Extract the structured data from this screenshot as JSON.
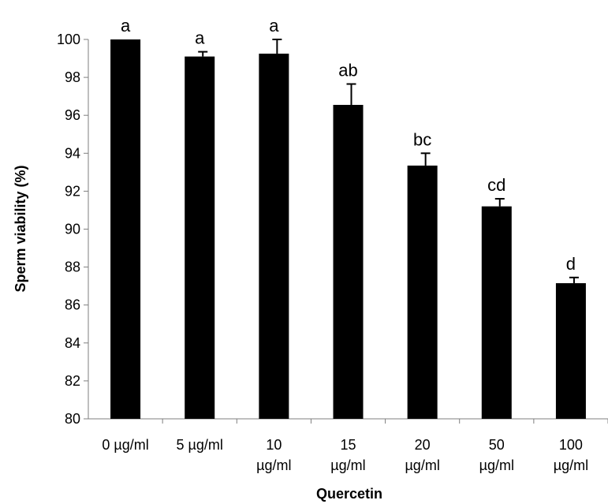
{
  "chart_data": {
    "type": "bar",
    "title": "",
    "xlabel": "Quercetin",
    "ylabel": "Sperm viability (%)",
    "ylim": [
      80,
      100
    ],
    "yticks": [
      80,
      82,
      84,
      86,
      88,
      90,
      92,
      94,
      96,
      98,
      100
    ],
    "grid": false,
    "categories": [
      [
        "0 µg/ml"
      ],
      [
        "5 µg/ml"
      ],
      [
        "10",
        "µg/ml"
      ],
      [
        "15",
        "µg/ml"
      ],
      [
        "20",
        "µg/ml"
      ],
      [
        "50",
        "µg/ml"
      ],
      [
        "100",
        "µg/ml"
      ]
    ],
    "values": [
      100,
      99.1,
      99.25,
      96.55,
      93.35,
      91.2,
      87.15
    ],
    "errors": [
      0,
      0.25,
      0.75,
      1.1,
      0.65,
      0.4,
      0.3
    ],
    "significance_labels": [
      "a",
      "a",
      "a",
      "ab",
      "bc",
      "cd",
      "d"
    ],
    "bar_color": "#000000"
  }
}
